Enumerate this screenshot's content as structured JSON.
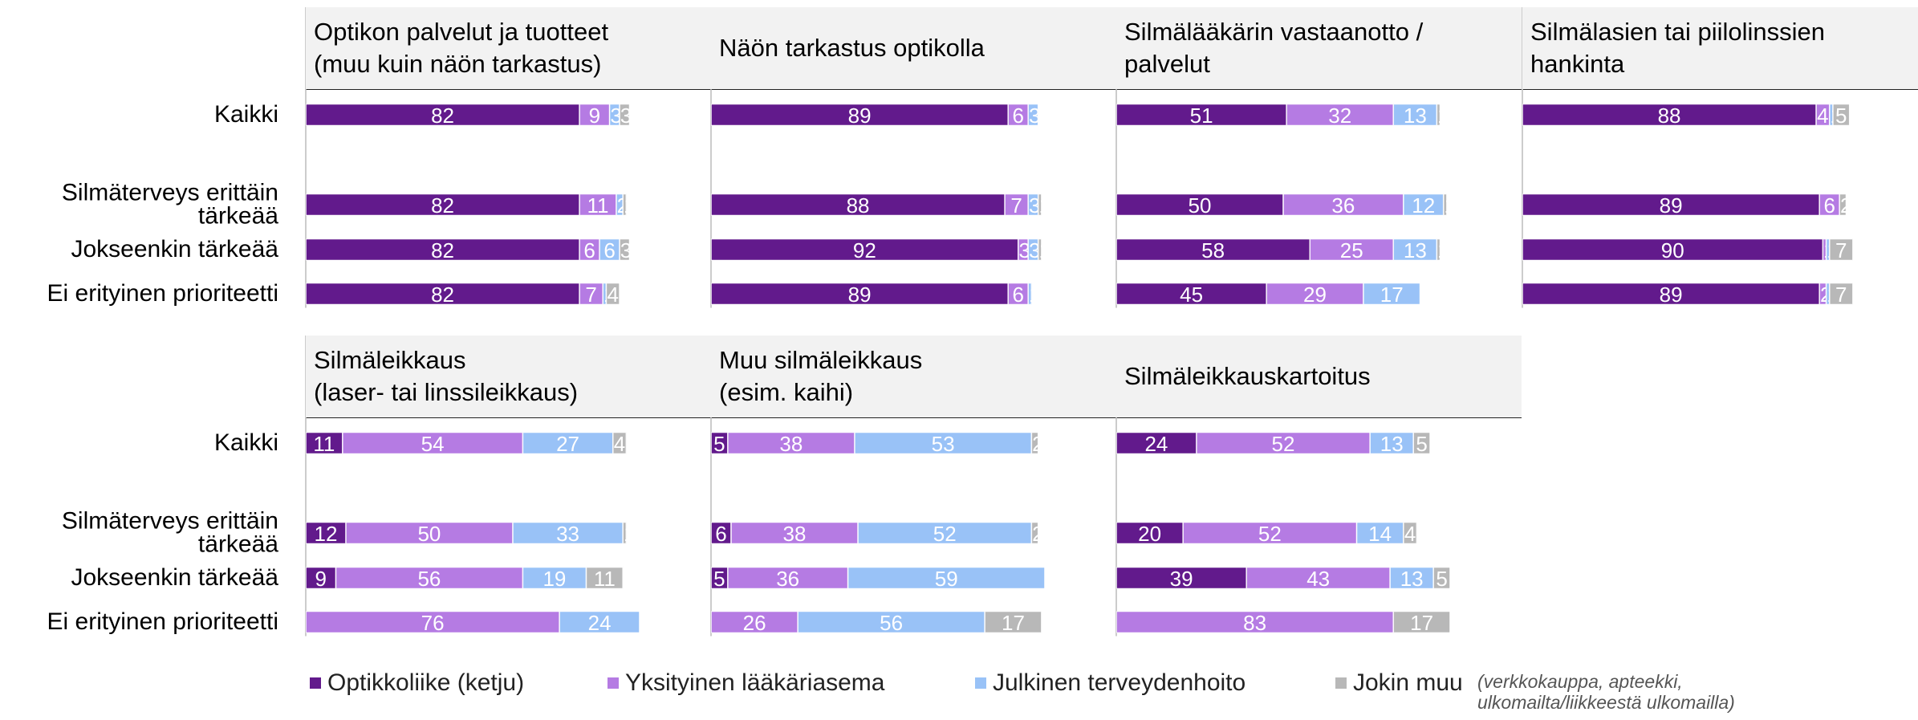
{
  "chart_data": [
    {
      "type": "bar",
      "stacked": true,
      "orientation": "horizontal",
      "title": "Optikon palvelut ja tuotteet\n(muu kuin näön tarkastus)",
      "xlim": [
        0,
        100
      ],
      "categories": [
        "Kaikki",
        "Silmäterveys erittäin tärkeää",
        "Jokseenkin tärkeää",
        "Ei erityinen prioriteetti"
      ],
      "series": [
        {
          "name": "Optikkoliike (ketju)",
          "color": "#621a8c",
          "values": [
            82,
            82,
            82,
            82
          ]
        },
        {
          "name": "Yksityinen lääkäriasema",
          "color": "#b57be3",
          "values": [
            9,
            11,
            6,
            7
          ]
        },
        {
          "name": "Julkinen terveydenhoito",
          "color": "#99c2f7",
          "values": [
            3,
            2,
            6,
            1
          ]
        },
        {
          "name": "Jokin muu",
          "color": "#b8b8b8",
          "values": [
            3,
            1,
            3,
            4
          ]
        }
      ]
    },
    {
      "type": "bar",
      "stacked": true,
      "orientation": "horizontal",
      "title": "Näön tarkastus optikolla",
      "xlim": [
        0,
        100
      ],
      "categories": [
        "Kaikki",
        "Silmäterveys erittäin tärkeää",
        "Jokseenkin tärkeää",
        "Ei erityinen prioriteetti"
      ],
      "series": [
        {
          "name": "Optikkoliike (ketju)",
          "color": "#621a8c",
          "values": [
            89,
            88,
            92,
            89
          ]
        },
        {
          "name": "Yksityinen lääkäriasema",
          "color": "#b57be3",
          "values": [
            6,
            7,
            3,
            6
          ]
        },
        {
          "name": "Julkinen terveydenhoito",
          "color": "#99c2f7",
          "values": [
            3,
            3,
            3,
            1
          ]
        },
        {
          "name": "Jokin muu",
          "color": "#b8b8b8",
          "values": [
            0,
            1,
            1,
            0
          ]
        }
      ]
    },
    {
      "type": "bar",
      "stacked": true,
      "orientation": "horizontal",
      "title": "Silmälääkärin vastaanotto /\npalvelut",
      "xlim": [
        0,
        100
      ],
      "categories": [
        "Kaikki",
        "Silmäterveys erittäin tärkeää",
        "Jokseenkin tärkeää",
        "Ei erityinen prioriteetti"
      ],
      "series": [
        {
          "name": "Optikkoliike (ketju)",
          "color": "#621a8c",
          "values": [
            51,
            50,
            58,
            45
          ]
        },
        {
          "name": "Yksityinen lääkäriasema",
          "color": "#b57be3",
          "values": [
            32,
            36,
            25,
            29
          ]
        },
        {
          "name": "Julkinen terveydenhoito",
          "color": "#99c2f7",
          "values": [
            13,
            12,
            13,
            17
          ]
        },
        {
          "name": "Jokin muu",
          "color": "#b8b8b8",
          "values": [
            1,
            1,
            1,
            0
          ]
        }
      ]
    },
    {
      "type": "bar",
      "stacked": true,
      "orientation": "horizontal",
      "title": "Silmälasien tai piilolinssien\nhankinta",
      "xlim": [
        0,
        100
      ],
      "categories": [
        "Kaikki",
        "Silmäterveys erittäin tärkeää",
        "Jokseenkin tärkeää",
        "Ei erityinen prioriteetti"
      ],
      "series": [
        {
          "name": "Optikkoliike (ketju)",
          "color": "#621a8c",
          "values": [
            88,
            89,
            90,
            89
          ]
        },
        {
          "name": "Yksityinen lääkäriasema",
          "color": "#b57be3",
          "values": [
            4,
            6,
            1,
            2
          ]
        },
        {
          "name": "Julkinen terveydenhoito",
          "color": "#99c2f7",
          "values": [
            1,
            0,
            1,
            1
          ]
        },
        {
          "name": "Jokin muu",
          "color": "#b8b8b8",
          "values": [
            5,
            2,
            7,
            7
          ]
        }
      ]
    },
    {
      "type": "bar",
      "stacked": true,
      "orientation": "horizontal",
      "title": "Silmäleikkaus\n(laser- tai linssileikkaus)",
      "xlim": [
        0,
        100
      ],
      "categories": [
        "Kaikki",
        "Silmäterveys erittäin tärkeää",
        "Jokseenkin tärkeää",
        "Ei erityinen prioriteetti"
      ],
      "series": [
        {
          "name": "Optikkoliike (ketju)",
          "color": "#621a8c",
          "values": [
            11,
            12,
            9,
            0
          ]
        },
        {
          "name": "Yksityinen lääkäriasema",
          "color": "#b57be3",
          "values": [
            54,
            50,
            56,
            76
          ]
        },
        {
          "name": "Julkinen terveydenhoito",
          "color": "#99c2f7",
          "values": [
            27,
            33,
            19,
            24
          ]
        },
        {
          "name": "Jokin muu",
          "color": "#b8b8b8",
          "values": [
            4,
            1,
            11,
            0
          ]
        }
      ]
    },
    {
      "type": "bar",
      "stacked": true,
      "orientation": "horizontal",
      "title": "Muu silmäleikkaus\n(esim. kaihi)",
      "xlim": [
        0,
        100
      ],
      "categories": [
        "Kaikki",
        "Silmäterveys erittäin tärkeää",
        "Jokseenkin tärkeää",
        "Ei erityinen prioriteetti"
      ],
      "series": [
        {
          "name": "Optikkoliike (ketju)",
          "color": "#621a8c",
          "values": [
            5,
            6,
            5,
            0
          ]
        },
        {
          "name": "Yksityinen lääkäriasema",
          "color": "#b57be3",
          "values": [
            38,
            38,
            36,
            26
          ]
        },
        {
          "name": "Julkinen terveydenhoito",
          "color": "#99c2f7",
          "values": [
            53,
            52,
            59,
            56
          ]
        },
        {
          "name": "Jokin muu",
          "color": "#b8b8b8",
          "values": [
            2,
            2,
            0,
            17
          ]
        }
      ]
    },
    {
      "type": "bar",
      "stacked": true,
      "orientation": "horizontal",
      "title": "Silmäleikkauskartoitus",
      "xlim": [
        0,
        100
      ],
      "categories": [
        "Kaikki",
        "Silmäterveys erittäin tärkeää",
        "Jokseenkin tärkeää",
        "Ei erityinen prioriteetti"
      ],
      "series": [
        {
          "name": "Optikkoliike (ketju)",
          "color": "#621a8c",
          "values": [
            24,
            20,
            39,
            0
          ]
        },
        {
          "name": "Yksityinen lääkäriasema",
          "color": "#b57be3",
          "values": [
            52,
            52,
            43,
            83
          ]
        },
        {
          "name": "Julkinen terveydenhoito",
          "color": "#99c2f7",
          "values": [
            13,
            14,
            13,
            0
          ]
        },
        {
          "name": "Jokin muu",
          "color": "#b8b8b8",
          "values": [
            5,
            4,
            5,
            17
          ]
        }
      ]
    }
  ],
  "legend_note": "(verkkokauppa, apteekki, ulkomailta/liikkeestä ulkomailla)"
}
